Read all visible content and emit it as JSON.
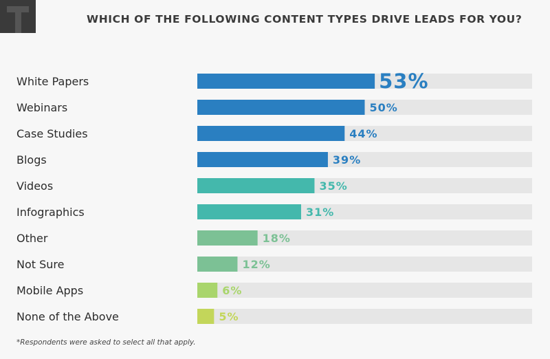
{
  "title": "WHICH OF THE FOLLOWING CONTENT TYPES DRIVE LEADS FOR YOU?",
  "footnote": "*Respondents were asked to select all that apply.",
  "chart_data": {
    "type": "bar",
    "orientation": "horizontal",
    "categories": [
      "White Papers",
      "Webinars",
      "Case Studies",
      "Blogs",
      "Videos",
      "Infographics",
      "Other",
      "Not Sure",
      "Mobile Apps",
      "None of the Above"
    ],
    "values": [
      53,
      50,
      44,
      39,
      35,
      31,
      18,
      12,
      6,
      5
    ],
    "value_labels": [
      "53%",
      "50%",
      "44%",
      "39%",
      "35%",
      "31%",
      "18%",
      "12%",
      "6%",
      "5%"
    ],
    "colors": [
      "#2a7fc1",
      "#2a7fc1",
      "#2a7fc1",
      "#2a7fc1",
      "#44b8ac",
      "#44b8ac",
      "#7cc195",
      "#7cc195",
      "#a9d56c",
      "#c3d65a"
    ],
    "track_color": "#e6e6e6",
    "xlim": [
      0,
      100
    ],
    "grid": false,
    "legend": "none"
  }
}
